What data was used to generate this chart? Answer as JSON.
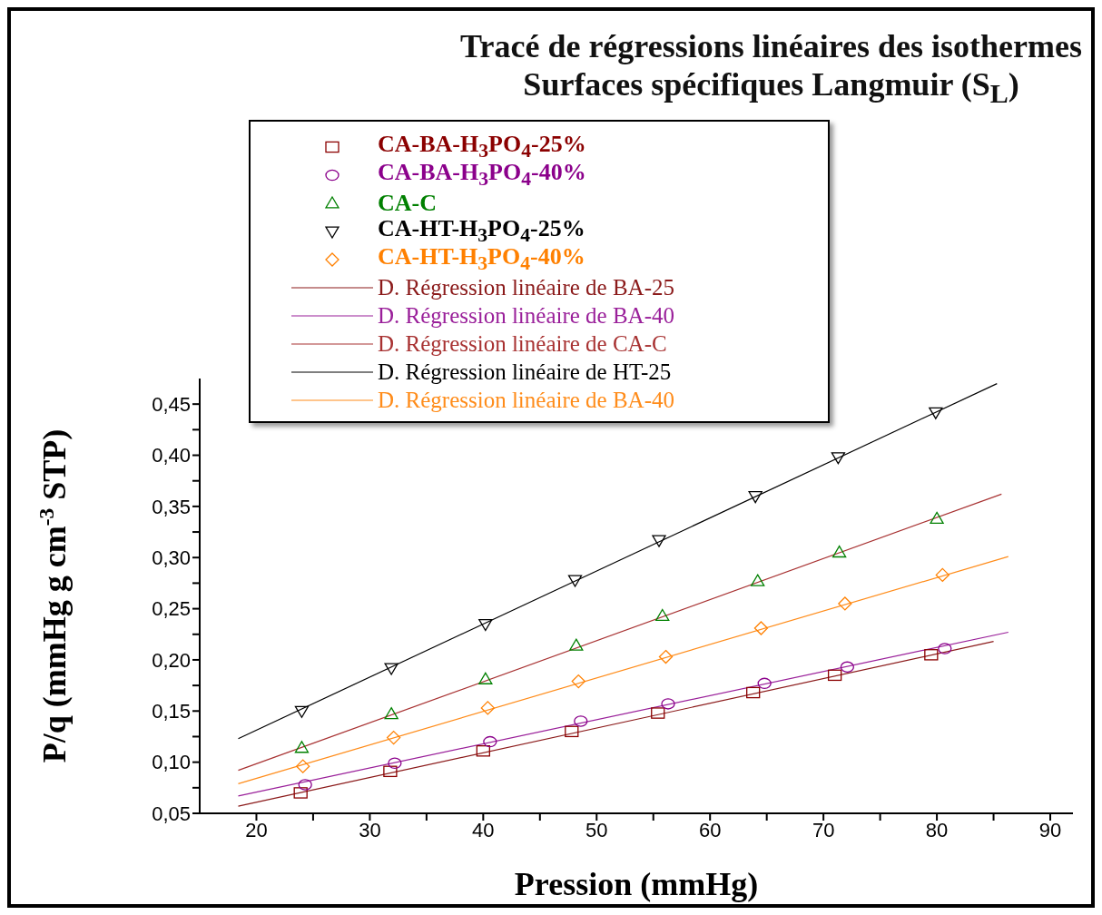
{
  "chart_data": {
    "type": "scatter",
    "title": "Tracé de régressions linéaires des isothermes",
    "subtitle": "Surfaces spécifiques Langmuir (S$_{L}$)",
    "xlabel": "Pression (mmHg)",
    "ylabel": "P/q (mmHg g cm$^{-3}$ STP)",
    "xlim": [
      15,
      92
    ],
    "xticks": [
      20,
      {
        "value": 25,
        "label": null
      },
      30,
      {
        "value": 35,
        "label": null
      },
      40,
      {
        "value": 45,
        "label": null
      },
      50,
      {
        "value": 55,
        "label": null
      },
      60,
      {
        "value": 65,
        "label": null
      },
      70,
      {
        "value": 75,
        "label": null
      },
      80,
      {
        "value": 85,
        "label": null
      },
      90
    ],
    "ylim": [
      0.05,
      0.475
    ],
    "yticks": [
      {
        "value": 0.05,
        "label": "0,05"
      },
      {
        "value": 0.075,
        "label": null
      },
      {
        "value": 0.1,
        "label": "0,10"
      },
      {
        "value": 0.125,
        "label": null
      },
      {
        "value": 0.15,
        "label": "0,15"
      },
      {
        "value": 0.175,
        "label": null
      },
      {
        "value": 0.2,
        "label": "0,20"
      },
      {
        "value": 0.225,
        "label": null
      },
      {
        "value": 0.25,
        "label": "0,25"
      },
      {
        "value": 0.275,
        "label": null
      },
      {
        "value": 0.3,
        "label": "0,30"
      },
      {
        "value": 0.325,
        "label": null
      },
      {
        "value": 0.35,
        "label": "0,35"
      },
      {
        "value": 0.375,
        "label": null
      },
      {
        "value": 0.4,
        "label": "0,40"
      },
      {
        "value": 0.425,
        "label": null
      },
      {
        "value": 0.45,
        "label": "0,45"
      }
    ],
    "legend": "top",
    "series": [
      {
        "name": "CA-BA-H$_{3}$PO$_{4}$-25%",
        "marker": "square",
        "color": "#8b0000",
        "x": [
          23.9,
          31.8,
          40.0,
          47.8,
          55.4,
          63.8,
          71.0,
          79.5
        ],
        "values": [
          0.07,
          0.091,
          0.111,
          0.13,
          0.148,
          0.168,
          0.185,
          0.205
        ]
      },
      {
        "name": "CA-BA-H$_{3}$PO$_{4}$-40%",
        "marker": "circle",
        "color": "#8b008b",
        "x": [
          24.3,
          32.2,
          40.6,
          48.6,
          56.3,
          64.8,
          72.1,
          80.7
        ],
        "values": [
          0.078,
          0.099,
          0.12,
          0.14,
          0.157,
          0.177,
          0.193,
          0.211
        ]
      },
      {
        "name": "CA-C",
        "marker": "triangle",
        "color": "#008000",
        "x": [
          24.0,
          31.9,
          40.2,
          48.2,
          55.8,
          64.2,
          71.4,
          80.0
        ],
        "values": [
          0.114,
          0.147,
          0.181,
          0.214,
          0.243,
          0.277,
          0.305,
          0.338
        ]
      },
      {
        "name": "CA-HT-H$_{3}$PO$_{4}$-25%",
        "marker": "triangle-down",
        "color": "#000000",
        "x": [
          24.0,
          31.9,
          40.2,
          48.1,
          55.5,
          64.0,
          71.3,
          79.9
        ],
        "values": [
          0.15,
          0.192,
          0.235,
          0.278,
          0.317,
          0.36,
          0.398,
          0.442
        ]
      },
      {
        "name": "CA-HT-H$_{3}$PO$_{4}$-40%",
        "marker": "diamond",
        "color": "#ff8000",
        "x": [
          24.1,
          32.1,
          40.4,
          48.4,
          56.1,
          64.5,
          71.9,
          80.5
        ],
        "values": [
          0.096,
          0.124,
          0.153,
          0.179,
          0.203,
          0.231,
          0.255,
          0.283
        ]
      },
      {
        "name": "D. Régression linéaire de BA-25",
        "type": "line",
        "marker": "none",
        "color": "#8b1a1a",
        "x": [
          18.4,
          85.0
        ],
        "values": [
          0.057,
          0.218
        ]
      },
      {
        "name": "D. Régression linéaire de BA-40",
        "type": "line",
        "marker": "none",
        "color": "#9a209a",
        "x": [
          18.4,
          86.3
        ],
        "values": [
          0.067,
          0.227
        ]
      },
      {
        "name": "D. Régression linéaire de CA-C",
        "type": "line",
        "marker": "none",
        "color": "#a83232",
        "x": [
          18.4,
          85.7
        ],
        "values": [
          0.092,
          0.362
        ]
      },
      {
        "name": "D. Régression linéaire de HT-25",
        "type": "line",
        "marker": "none",
        "color": "#000000",
        "x": [
          18.4,
          85.3
        ],
        "values": [
          0.123,
          0.47
        ]
      },
      {
        "name": "D. Régression linéaire de BA-40",
        "type": "line",
        "marker": "none",
        "color": "#ff8c1a",
        "x": [
          18.4,
          86.3
        ],
        "values": [
          0.079,
          0.301
        ]
      }
    ]
  }
}
